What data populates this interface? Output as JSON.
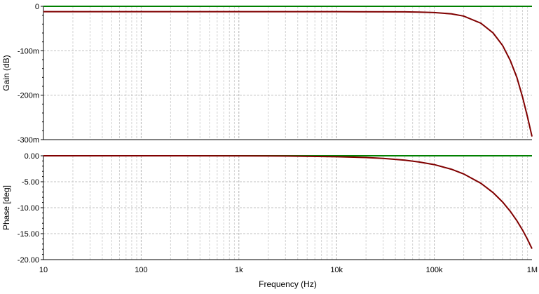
{
  "chart_data": [
    {
      "type": "line",
      "ylabel": "Gain (dB)",
      "xscale": "log",
      "xlim": [
        10,
        1000000
      ],
      "ylim": [
        -0.3,
        0
      ],
      "yticks": [
        {
          "value": 0,
          "label": "0"
        },
        {
          "value": -0.1,
          "label": "-100m"
        },
        {
          "value": -0.2,
          "label": "-200m"
        },
        {
          "value": -0.3,
          "label": "-300m"
        }
      ],
      "grid": true,
      "reference_line": {
        "value": 0,
        "color": "#008000"
      },
      "series": [
        {
          "color": "#800000",
          "x": [
            10,
            100,
            1000,
            10000,
            50000,
            70000,
            100000,
            150000,
            200000,
            300000,
            400000,
            500000,
            600000,
            700000,
            800000,
            900000,
            1000000
          ],
          "y": [
            -0.012,
            -0.012,
            -0.012,
            -0.012,
            -0.0125,
            -0.013,
            -0.014,
            -0.017,
            -0.022,
            -0.038,
            -0.06,
            -0.088,
            -0.122,
            -0.16,
            -0.204,
            -0.249,
            -0.293
          ]
        }
      ]
    },
    {
      "type": "line",
      "ylabel": "Phase [deg]",
      "xlabel": "Frequency (Hz)",
      "xscale": "log",
      "xlim": [
        10,
        1000000
      ],
      "ylim": [
        -20,
        0
      ],
      "yticks": [
        {
          "value": 0,
          "label": "0.00"
        },
        {
          "value": -5,
          "label": "-5.00"
        },
        {
          "value": -10,
          "label": "-10.00"
        },
        {
          "value": -15,
          "label": "-15.00"
        },
        {
          "value": -20,
          "label": "-20.00"
        }
      ],
      "xticks": [
        {
          "value": 10,
          "label": "10"
        },
        {
          "value": 100,
          "label": "100"
        },
        {
          "value": 1000,
          "label": "1k"
        },
        {
          "value": 10000,
          "label": "10k"
        },
        {
          "value": 100000,
          "label": "100k"
        },
        {
          "value": 1000000,
          "label": "1M"
        }
      ],
      "grid": true,
      "reference_line": {
        "value": 0,
        "color": "#008000"
      },
      "series": [
        {
          "color": "#800000",
          "x": [
            10,
            100,
            1000,
            3000,
            10000,
            20000,
            30000,
            50000,
            70000,
            100000,
            150000,
            200000,
            300000,
            400000,
            500000,
            600000,
            700000,
            800000,
            900000,
            1000000
          ],
          "y": [
            0,
            0,
            -0.02,
            -0.05,
            -0.18,
            -0.33,
            -0.5,
            -0.85,
            -1.2,
            -1.7,
            -2.6,
            -3.5,
            -5.3,
            -7.1,
            -8.9,
            -10.7,
            -12.5,
            -14.3,
            -16.1,
            -17.9
          ]
        }
      ]
    }
  ]
}
